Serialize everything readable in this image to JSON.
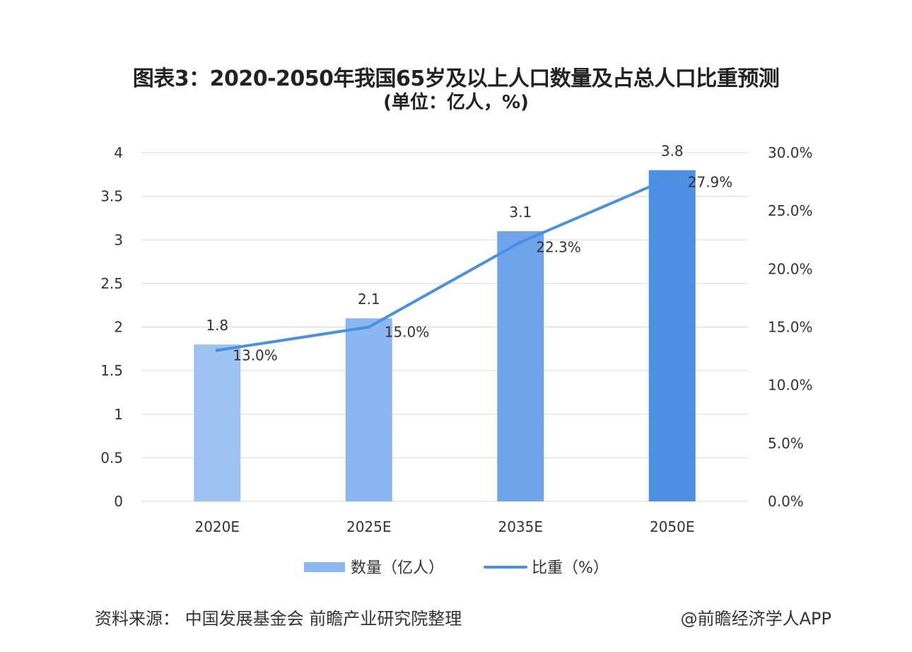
{
  "title_line1": "图表3：2020-2050年我国65岁及以上人口数量及占总人口比重预测",
  "title_line2": "(单位：亿人，%)",
  "source": "资料来源：  中国发展基金会  前瞻产业研究院整理",
  "credit": "@前瞻经济学人APP",
  "colors": {
    "bars": [
      "#9ec3f3",
      "#8ab6f1",
      "#6fa3ea",
      "#4d8fe2"
    ],
    "line": "#4a90e2",
    "grid": "#d9d9d9",
    "axis_text": "#333333"
  },
  "chart_data": {
    "type": "bar+line",
    "categories": [
      "2020E",
      "2025E",
      "2035E",
      "2050E"
    ],
    "series": [
      {
        "name": "数量（亿人）",
        "type": "bar",
        "axis": "left",
        "values": [
          1.8,
          2.1,
          3.1,
          3.8
        ],
        "labels": [
          "1.8",
          "2.1",
          "3.1",
          "3.8"
        ]
      },
      {
        "name": "比重（%）",
        "type": "line",
        "axis": "right",
        "values": [
          13.0,
          15.0,
          22.3,
          27.9
        ],
        "labels": [
          "13.0%",
          "15.0%",
          "22.3%",
          "27.9%"
        ]
      }
    ],
    "y_left": {
      "min": 0,
      "max": 4,
      "ticks": [
        "0",
        "0.5",
        "1",
        "1.5",
        "2",
        "2.5",
        "3",
        "3.5",
        "4"
      ]
    },
    "y_right": {
      "min": 0,
      "max": 30,
      "ticks": [
        "0.0%",
        "5.0%",
        "10.0%",
        "15.0%",
        "20.0%",
        "25.0%",
        "30.0%"
      ]
    },
    "grid": true,
    "legend_position": "bottom"
  }
}
